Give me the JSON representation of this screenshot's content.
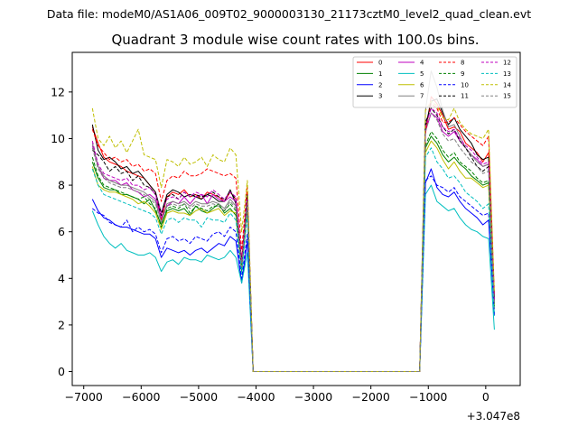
{
  "figure": {
    "suptitle": "Data file: modeM0/AS1A06_009T02_9000003130_21173cztM0_level2_quad_clean.evt",
    "title": "Quadrant 3 module wise count rates with 100.0s bins.",
    "offset_label": "+3.047e8"
  },
  "chart_data": {
    "type": "line",
    "title": "Quadrant 3 module wise count rates with 100.0s bins.",
    "xlabel": "",
    "ylabel": "",
    "x_offset": 304700000,
    "xlim": [
      -7200,
      600
    ],
    "ylim": [
      -0.6,
      13.7
    ],
    "xticks": [
      -7000,
      -6000,
      -5000,
      -4000,
      -3000,
      -2000,
      -1000,
      0
    ],
    "xtick_labels": [
      "−7000",
      "−6000",
      "−5000",
      "−4000",
      "−3000",
      "−2000",
      "−1000",
      "0"
    ],
    "yticks": [
      0,
      2,
      4,
      6,
      8,
      10,
      12
    ],
    "ytick_labels": [
      "0",
      "2",
      "4",
      "6",
      "8",
      "10",
      "12"
    ],
    "grid": false,
    "legend": {
      "position": "top-right",
      "columns": 4
    },
    "gap": {
      "start": -3950,
      "end": -1150
    },
    "x_pre": [
      -6850,
      -6750,
      -6650,
      -6550,
      -6450,
      -6350,
      -6250,
      -6150,
      -6050,
      -5950,
      -5850,
      -5750,
      -5650,
      -5550,
      -5450,
      -5350,
      -5250,
      -5150,
      -5050,
      -4950,
      -4850,
      -4750,
      -4650,
      -4550,
      -4450,
      -4350,
      -4250,
      -4150,
      -4050
    ],
    "x_post": [
      -1150,
      -1050,
      -950,
      -850,
      -750,
      -650,
      -550,
      -450,
      -350,
      -250,
      -150,
      -50,
      50,
      150
    ],
    "series": [
      {
        "name": "0",
        "color": "#ff0000",
        "dash": "solid",
        "pre": [
          10.5,
          9.8,
          9.2,
          9.0,
          8.9,
          8.8,
          8.6,
          8.5,
          8.4,
          8.3,
          8.0,
          7.7,
          6.5,
          7.5,
          7.7,
          7.6,
          7.8,
          7.5,
          7.6,
          7.4,
          7.7,
          7.6,
          7.5,
          7.3,
          7.7,
          7.4,
          4.8,
          7.5,
          0.0
        ],
        "post": [
          0.0,
          10.2,
          11.8,
          11.5,
          11.0,
          10.4,
          10.5,
          10.3,
          9.8,
          9.6,
          9.4,
          9.0,
          9.4,
          3.2
        ]
      },
      {
        "name": "1",
        "color": "#008000",
        "dash": "solid",
        "pre": [
          9.0,
          8.3,
          7.9,
          7.8,
          7.8,
          7.6,
          7.6,
          7.5,
          7.4,
          7.2,
          7.4,
          6.9,
          6.3,
          6.9,
          7.0,
          6.9,
          7.0,
          6.7,
          7.1,
          6.9,
          6.8,
          7.0,
          7.2,
          6.8,
          7.0,
          6.7,
          4.3,
          7.0,
          0.0
        ],
        "post": [
          0.0,
          9.6,
          10.1,
          9.8,
          9.3,
          9.0,
          9.2,
          8.9,
          8.7,
          8.4,
          8.2,
          8.0,
          8.1,
          2.8
        ]
      },
      {
        "name": "2",
        "color": "#0000ff",
        "dash": "solid",
        "pre": [
          7.4,
          6.9,
          6.6,
          6.5,
          6.3,
          6.2,
          6.2,
          6.1,
          6.0,
          5.9,
          5.9,
          5.7,
          4.9,
          5.3,
          5.2,
          5.1,
          5.2,
          5.0,
          5.2,
          5.3,
          5.1,
          5.3,
          5.5,
          5.4,
          5.8,
          5.6,
          3.8,
          5.6,
          0.0
        ],
        "post": [
          0.0,
          8.1,
          8.7,
          7.9,
          7.6,
          7.5,
          7.7,
          7.3,
          7.0,
          6.8,
          6.6,
          6.3,
          6.5,
          2.4
        ]
      },
      {
        "name": "3",
        "color": "#000000",
        "dash": "solid",
        "pre": [
          10.6,
          9.5,
          9.1,
          9.2,
          9.0,
          8.7,
          8.8,
          8.5,
          8.6,
          8.3,
          8.0,
          7.7,
          6.8,
          7.6,
          7.8,
          7.7,
          7.5,
          7.6,
          7.5,
          7.4,
          7.6,
          7.5,
          7.3,
          7.3,
          7.8,
          7.2,
          4.6,
          7.6,
          0.0
        ],
        "post": [
          0.0,
          10.5,
          11.6,
          11.7,
          11.1,
          10.6,
          10.9,
          10.4,
          10.1,
          9.8,
          9.3,
          9.1,
          9.2,
          3.1
        ]
      },
      {
        "name": "4",
        "color": "#bf00bf",
        "dash": "solid",
        "pre": [
          9.7,
          8.8,
          8.3,
          8.2,
          8.2,
          8.0,
          8.1,
          7.8,
          7.7,
          7.5,
          7.6,
          7.4,
          6.6,
          7.1,
          7.3,
          7.2,
          7.5,
          7.2,
          7.5,
          7.6,
          7.2,
          7.6,
          7.4,
          7.3,
          7.5,
          7.3,
          4.6,
          7.3,
          0.0
        ],
        "post": [
          0.0,
          10.3,
          11.1,
          10.9,
          10.3,
          10.1,
          10.3,
          9.9,
          9.6,
          9.3,
          9.1,
          8.8,
          8.9,
          3.0
        ]
      },
      {
        "name": "5",
        "color": "#00bfbf",
        "dash": "solid",
        "pre": [
          6.9,
          6.3,
          5.8,
          5.5,
          5.3,
          5.5,
          5.2,
          5.1,
          5.0,
          5.0,
          5.1,
          4.9,
          4.3,
          4.7,
          4.8,
          4.6,
          4.9,
          4.8,
          4.8,
          4.7,
          5.0,
          4.9,
          4.8,
          4.9,
          5.2,
          4.9,
          3.8,
          5.1,
          0.0
        ],
        "post": [
          0.0,
          7.6,
          8.0,
          7.3,
          7.1,
          6.9,
          7.0,
          6.6,
          6.3,
          6.1,
          6.0,
          5.8,
          5.7,
          1.8
        ]
      },
      {
        "name": "6",
        "color": "#bfbf00",
        "dash": "solid",
        "pre": [
          8.8,
          8.0,
          7.8,
          7.7,
          7.7,
          7.6,
          7.5,
          7.4,
          7.2,
          7.3,
          7.1,
          6.8,
          6.1,
          6.8,
          6.9,
          6.8,
          6.8,
          6.7,
          6.9,
          7.0,
          6.8,
          6.9,
          7.0,
          6.7,
          6.9,
          6.8,
          4.4,
          7.0,
          0.0
        ],
        "post": [
          0.0,
          9.4,
          9.9,
          9.6,
          9.1,
          8.7,
          9.0,
          8.6,
          8.3,
          8.3,
          8.1,
          7.9,
          8.0,
          2.7
        ]
      },
      {
        "name": "7",
        "color": "#808080",
        "dash": "solid",
        "pre": [
          9.8,
          8.8,
          8.4,
          8.2,
          8.1,
          8.0,
          8.0,
          7.9,
          7.8,
          7.7,
          7.5,
          7.3,
          6.4,
          7.2,
          7.3,
          7.2,
          7.3,
          7.1,
          7.3,
          7.2,
          7.2,
          7.3,
          7.2,
          7.0,
          7.4,
          7.1,
          4.5,
          7.3,
          0.0
        ],
        "post": [
          0.0,
          11.2,
          12.9,
          12.2,
          11.2,
          10.5,
          10.6,
          10.1,
          9.6,
          9.3,
          9.0,
          8.8,
          8.9,
          3.0
        ]
      },
      {
        "name": "8",
        "color": "#ff0000",
        "dash": "dashed",
        "pre": [
          10.4,
          9.7,
          9.4,
          9.1,
          9.2,
          9.0,
          9.1,
          8.8,
          8.9,
          8.6,
          8.7,
          8.5,
          7.3,
          8.2,
          8.4,
          8.3,
          8.6,
          8.4,
          8.4,
          8.5,
          8.7,
          8.6,
          8.5,
          8.4,
          8.5,
          8.3,
          5.2,
          8.0,
          0.0
        ],
        "post": [
          0.0,
          10.3,
          11.5,
          11.3,
          10.7,
          10.7,
          10.9,
          10.6,
          10.3,
          10.1,
          9.9,
          9.7,
          10.1,
          3.3
        ]
      },
      {
        "name": "9",
        "color": "#008000",
        "dash": "dashed",
        "pre": [
          9.2,
          8.4,
          8.0,
          7.9,
          7.8,
          7.7,
          7.6,
          7.5,
          7.4,
          7.5,
          7.2,
          7.0,
          6.2,
          7.0,
          7.1,
          7.0,
          7.2,
          6.8,
          7.1,
          7.0,
          6.9,
          7.1,
          7.1,
          6.9,
          7.2,
          6.9,
          4.4,
          7.1,
          0.0
        ],
        "post": [
          0.0,
          9.7,
          10.3,
          10.0,
          9.5,
          9.2,
          9.4,
          9.0,
          8.8,
          8.6,
          8.3,
          8.1,
          8.2,
          2.8
        ]
      },
      {
        "name": "10",
        "color": "#0000ff",
        "dash": "dashed",
        "pre": [
          7.0,
          6.8,
          6.7,
          6.4,
          6.3,
          6.2,
          6.5,
          6.0,
          6.2,
          6.0,
          6.1,
          5.9,
          5.1,
          5.7,
          5.8,
          5.6,
          5.7,
          5.5,
          5.8,
          5.7,
          5.6,
          5.9,
          6.0,
          5.8,
          6.2,
          6.0,
          4.0,
          5.9,
          0.0
        ],
        "post": [
          0.0,
          8.2,
          8.4,
          8.0,
          7.9,
          7.7,
          7.9,
          7.5,
          7.3,
          7.1,
          6.9,
          6.7,
          6.8,
          2.5
        ]
      },
      {
        "name": "11",
        "color": "#000000",
        "dash": "dashed",
        "pre": [
          9.5,
          9.3,
          9.0,
          8.6,
          8.8,
          8.5,
          8.6,
          8.2,
          8.4,
          8.0,
          7.9,
          7.6,
          6.7,
          7.5,
          7.6,
          7.4,
          7.7,
          7.5,
          7.6,
          7.5,
          7.6,
          7.7,
          7.5,
          7.4,
          7.7,
          7.4,
          4.7,
          7.5,
          0.0
        ],
        "post": [
          0.0,
          10.7,
          11.3,
          11.0,
          10.5,
          10.2,
          10.4,
          9.9,
          9.6,
          9.2,
          8.8,
          8.6,
          8.8,
          3.1
        ]
      },
      {
        "name": "12",
        "color": "#bf00bf",
        "dash": "dashed",
        "pre": [
          9.9,
          8.9,
          8.5,
          8.4,
          8.3,
          8.2,
          8.3,
          8.0,
          8.0,
          7.8,
          7.9,
          7.6,
          6.8,
          7.4,
          7.5,
          7.4,
          7.7,
          7.5,
          7.7,
          7.6,
          7.5,
          7.8,
          7.6,
          7.4,
          7.7,
          7.5,
          4.7,
          7.4,
          0.0
        ],
        "post": [
          0.0,
          10.5,
          11.3,
          11.1,
          10.5,
          10.3,
          10.4,
          10.0,
          9.7,
          9.5,
          9.2,
          8.9,
          9.0,
          3.0
        ]
      },
      {
        "name": "13",
        "color": "#00bfbf",
        "dash": "dashed",
        "pre": [
          8.7,
          8.0,
          7.6,
          7.5,
          7.4,
          7.3,
          7.2,
          7.1,
          7.0,
          6.9,
          6.8,
          6.6,
          5.9,
          6.5,
          6.6,
          6.4,
          6.6,
          6.5,
          6.5,
          6.2,
          6.6,
          6.5,
          6.5,
          6.4,
          6.8,
          6.5,
          4.2,
          6.7,
          0.0
        ],
        "post": [
          0.0,
          9.2,
          9.6,
          9.0,
          8.7,
          8.3,
          8.4,
          8.1,
          7.7,
          7.5,
          7.3,
          7.0,
          7.2,
          2.4
        ]
      },
      {
        "name": "14",
        "color": "#bfbf00",
        "dash": "dashed",
        "pre": [
          11.3,
          10.0,
          9.7,
          10.1,
          9.6,
          9.9,
          9.4,
          9.9,
          10.4,
          9.3,
          9.2,
          9.1,
          7.9,
          9.1,
          9.0,
          8.8,
          9.2,
          8.9,
          9.0,
          9.2,
          8.8,
          9.3,
          9.1,
          9.0,
          9.6,
          9.3,
          6.0,
          8.2,
          0.0
        ],
        "post": [
          0.0,
          11.2,
          11.6,
          11.4,
          10.9,
          10.8,
          11.3,
          10.7,
          10.4,
          10.2,
          10.1,
          10.0,
          10.4,
          3.4
        ]
      },
      {
        "name": "15",
        "color": "#808080",
        "dash": "dashed",
        "pre": [
          9.6,
          8.7,
          8.3,
          8.1,
          8.0,
          7.9,
          7.9,
          7.8,
          7.7,
          7.6,
          7.4,
          7.2,
          6.4,
          7.1,
          7.2,
          7.1,
          7.2,
          7.0,
          7.2,
          7.1,
          7.1,
          7.2,
          7.1,
          6.9,
          7.3,
          7.0,
          4.5,
          7.2,
          0.0
        ],
        "post": [
          0.0,
          10.3,
          11.1,
          10.8,
          10.2,
          9.9,
          10.0,
          9.6,
          9.3,
          9.0,
          8.8,
          8.5,
          8.6,
          2.9
        ]
      }
    ]
  }
}
